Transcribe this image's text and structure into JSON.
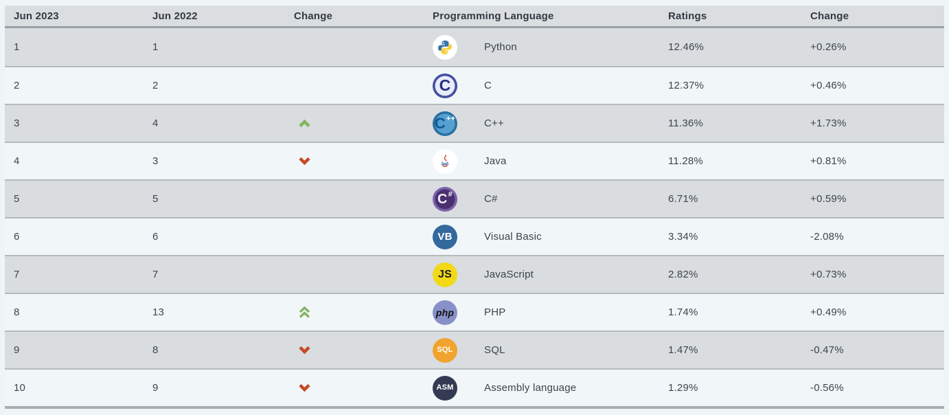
{
  "colors": {
    "up_arrow": "#85b463",
    "down_arrow": "#c64a26",
    "row_gray": "#d9dde0",
    "row_light": "#f1f6f8",
    "header_background": "#dadee1",
    "body_text": "#3d444c"
  },
  "table": {
    "headers": [
      {
        "label": "Jun 2023"
      },
      {
        "label": "Jun 2022"
      },
      {
        "label": "Change"
      },
      {
        "label": "Programming Language"
      },
      {
        "label": "Ratings"
      },
      {
        "label": "Change"
      }
    ],
    "rows": [
      {
        "rank_2023": "1",
        "rank_2022": "1",
        "move": "none",
        "icon": "python-icon",
        "badge_text": "",
        "badge_suffix": "",
        "badge_bg": "#ffffff",
        "badge_fg": "",
        "language": "Python",
        "ratings": "12.46%",
        "change": "+0.26%"
      },
      {
        "rank_2023": "2",
        "rank_2022": "2",
        "move": "none",
        "icon": "c-icon",
        "badge_text": "C",
        "badge_suffix": "",
        "badge_bg": "#444fa0",
        "badge_fg": "#232e7c",
        "language": "C",
        "ratings": "12.37%",
        "change": "+0.46%"
      },
      {
        "rank_2023": "3",
        "rank_2022": "4",
        "move": "up",
        "icon": "cpp-icon",
        "badge_text": "C",
        "badge_suffix": "++",
        "badge_bg": "#3c87be",
        "badge_fg": "#0d5a94",
        "language": "C++",
        "ratings": "11.36%",
        "change": "+1.73%"
      },
      {
        "rank_2023": "4",
        "rank_2022": "3",
        "move": "down",
        "icon": "java-icon",
        "badge_text": "",
        "badge_suffix": "",
        "badge_bg": "#ffffff",
        "badge_fg": "",
        "language": "Java",
        "ratings": "11.28%",
        "change": "+0.81%"
      },
      {
        "rank_2023": "5",
        "rank_2022": "5",
        "move": "none",
        "icon": "csharp-icon",
        "badge_text": "C",
        "badge_suffix": "#",
        "badge_bg": "#6c4f9b",
        "badge_fg": "#f2edf9",
        "language": "C#",
        "ratings": "6.71%",
        "change": "+0.59%"
      },
      {
        "rank_2023": "6",
        "rank_2022": "6",
        "move": "none",
        "icon": "vb-icon",
        "badge_text": "VB",
        "badge_suffix": "",
        "badge_bg": "#33699c",
        "badge_fg": "#ffffff",
        "language": "Visual Basic",
        "ratings": "3.34%",
        "change": "-2.08%"
      },
      {
        "rank_2023": "7",
        "rank_2022": "7",
        "move": "none",
        "icon": "js-icon",
        "badge_text": "JS",
        "badge_suffix": "",
        "badge_bg": "#f2d918",
        "badge_fg": "#1c1c1c",
        "language": "JavaScript",
        "ratings": "2.82%",
        "change": "+0.73%"
      },
      {
        "rank_2023": "8",
        "rank_2022": "13",
        "move": "up2",
        "icon": "php-icon",
        "badge_text": "php",
        "badge_suffix": "",
        "badge_bg": "#8890c9",
        "badge_fg": "#121212",
        "language": "PHP",
        "ratings": "1.74%",
        "change": "+0.49%"
      },
      {
        "rank_2023": "9",
        "rank_2022": "8",
        "move": "down",
        "icon": "sql-icon",
        "badge_text": "SQL",
        "badge_suffix": "",
        "badge_bg": "#f0a42e",
        "badge_fg": "#ffffff",
        "language": "SQL",
        "ratings": "1.47%",
        "change": "-0.47%"
      },
      {
        "rank_2023": "10",
        "rank_2022": "9",
        "move": "down",
        "icon": "asm-icon",
        "badge_text": "ASM",
        "badge_suffix": "",
        "badge_bg": "#333a52",
        "badge_fg": "#ffffff",
        "language": "Assembly language",
        "ratings": "1.29%",
        "change": "-0.56%"
      }
    ]
  }
}
